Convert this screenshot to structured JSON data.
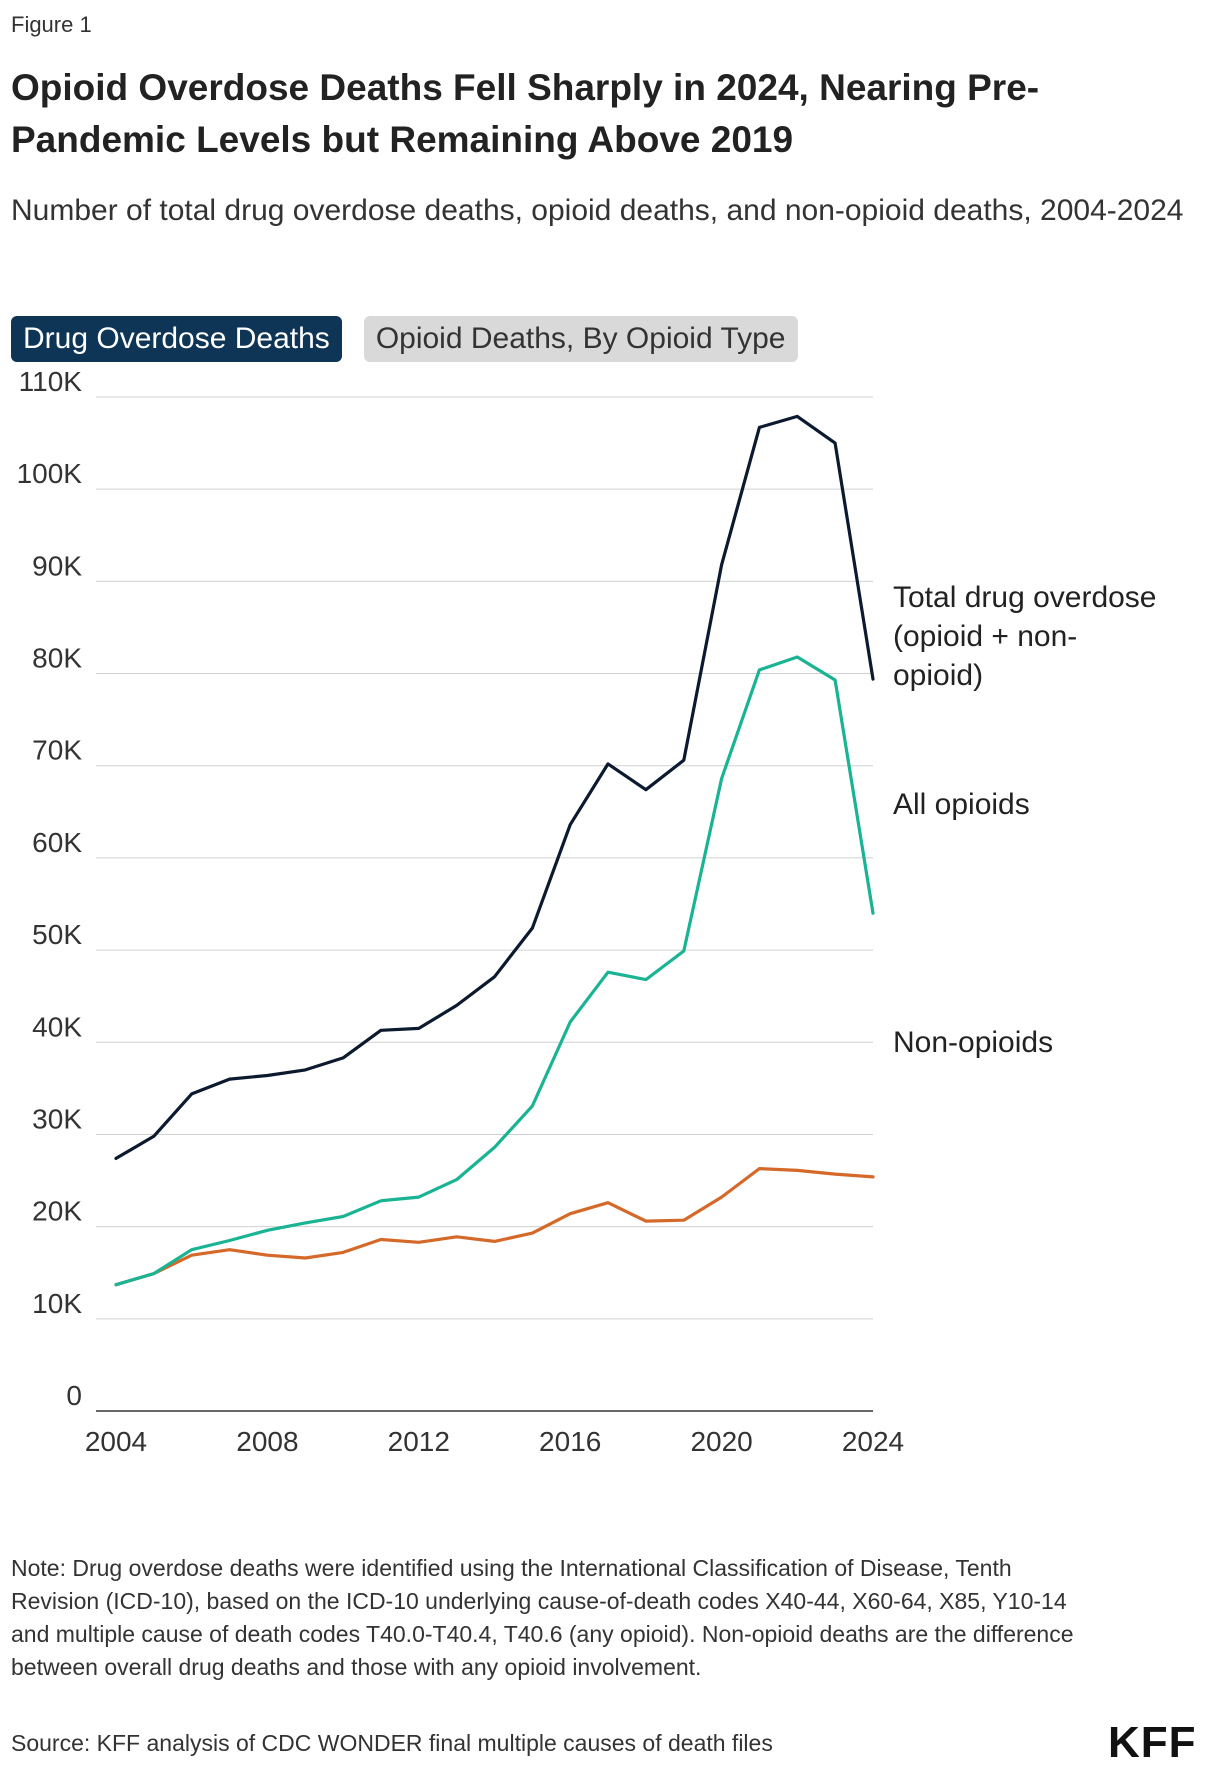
{
  "figure_label": "Figure 1",
  "title": "Opioid Overdose Deaths Fell Sharply in 2024, Nearing Pre-Pandemic Levels but Remaining Above 2019",
  "subtitle": "Number of total drug overdose deaths, opioid deaths, and non-opioid deaths, 2004-2024",
  "tabs": [
    {
      "label": "Drug Overdose Deaths",
      "active": true
    },
    {
      "label": "Opioid Deaths, By Opioid Type",
      "active": false
    }
  ],
  "chart_data": {
    "type": "line",
    "x": [
      2004,
      2005,
      2006,
      2007,
      2008,
      2009,
      2010,
      2011,
      2012,
      2013,
      2014,
      2015,
      2016,
      2017,
      2018,
      2019,
      2020,
      2021,
      2022,
      2023,
      2024
    ],
    "series": [
      {
        "name": "Total drug overdose (opioid + non-opioid)",
        "label_lines": [
          "Total drug overdose",
          "(opioid + non-",
          "opioid)"
        ],
        "color": "#0b1a2e",
        "values": [
          27400,
          29800,
          34400,
          36000,
          36400,
          37000,
          38300,
          41300,
          41500,
          44000,
          47100,
          52400,
          63600,
          70200,
          67400,
          70600,
          91800,
          106700,
          107900,
          105000,
          79400
        ]
      },
      {
        "name": "All opioids",
        "label_lines": [
          "All opioids"
        ],
        "color": "#1ab394",
        "values": [
          13700,
          14900,
          17500,
          18500,
          19600,
          20400,
          21100,
          22800,
          23200,
          25100,
          28600,
          33100,
          42200,
          47600,
          46800,
          49900,
          68600,
          80400,
          81800,
          79300,
          54000
        ]
      },
      {
        "name": "Non-opioids",
        "label_lines": [
          "Non-opioids"
        ],
        "color": "#d4692a",
        "values": [
          13700,
          14900,
          16900,
          17500,
          16900,
          16600,
          17200,
          18600,
          18300,
          18900,
          18400,
          19300,
          21400,
          22600,
          20600,
          20700,
          23200,
          26300,
          26100,
          25700,
          25400
        ]
      }
    ],
    "xticks": [
      2004,
      2008,
      2012,
      2016,
      2020,
      2024
    ],
    "yticks": [
      0,
      10000,
      20000,
      30000,
      40000,
      50000,
      60000,
      70000,
      80000,
      90000,
      100000,
      110000
    ],
    "ytick_labels": [
      "0",
      "10K",
      "20K",
      "30K",
      "40K",
      "50K",
      "60K",
      "70K",
      "80K",
      "90K",
      "100K",
      "110K"
    ],
    "ylim": [
      0,
      110000
    ],
    "xlim": [
      2004,
      2024
    ],
    "grid": true,
    "legend": "direct labels at line ends"
  },
  "note": "Note: Drug overdose deaths were identified using the International Classification of Disease, Tenth Revision (ICD-10), based on the ICD-10 underlying cause-of-death codes X40-44, X60-64, X85, Y10-14 and multiple cause of death codes T40.0-T40.4, T40.6 (any opioid). Non-opioid deaths are the difference between overall drug deaths and those with any opioid involvement.",
  "source": "Source: KFF analysis of CDC WONDER final multiple causes of death files",
  "logo": "KFF"
}
